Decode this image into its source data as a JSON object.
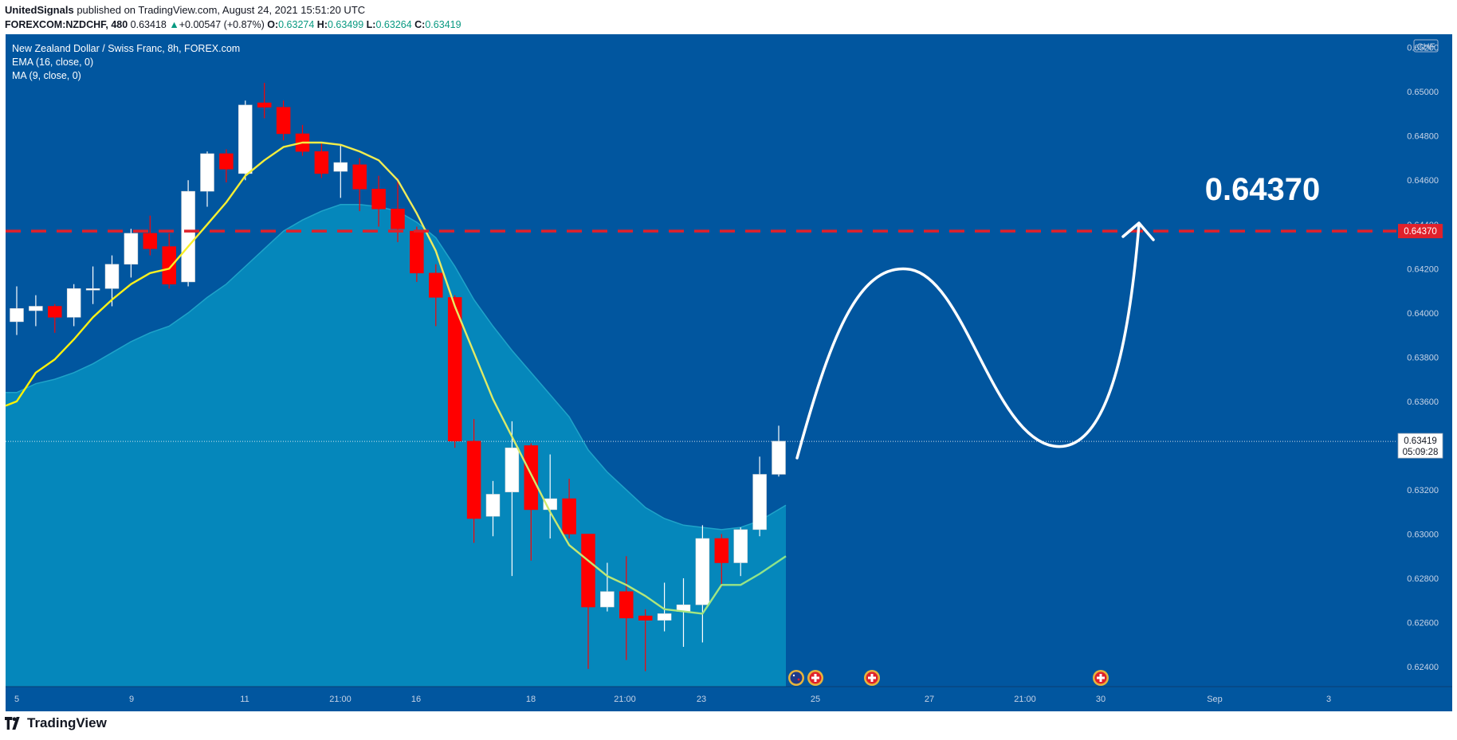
{
  "header": {
    "publisher": "UnitedSignals",
    "published_text": "published on TradingView.com, August 24, 2021 15:51:20 UTC",
    "symbol": "FOREXCOM:NZDCHF, 480",
    "last": "0.63418",
    "change": "+0.00547 (+0.87%)",
    "o_label": "O:",
    "o": "0.63274",
    "h_label": "H:",
    "h": "0.63499",
    "l_label": "L:",
    "l": "0.63264",
    "c_label": "C:",
    "c": "0.63419"
  },
  "legend": {
    "title": "New Zealand Dollar / Swiss Franc, 8h, FOREX.com",
    "ema": "EMA (16, close, 0)",
    "ma": "MA (9, close, 0)"
  },
  "footer": {
    "brand": "TradingView"
  },
  "colors": {
    "background": "#01569F",
    "area": "#0587BB",
    "up_candle": "#FFFFFF",
    "down_candle": "#FF0000",
    "ma_line": "#FFF200",
    "target_line": "#E0212B",
    "projection": "#FFFFFF"
  },
  "chart_data": {
    "type": "candlestick",
    "currency_label": "CHF",
    "y_ticks": [
      "0.62400",
      "0.62600",
      "0.62800",
      "0.63000",
      "0.63200",
      "0.63400",
      "0.63600",
      "0.63800",
      "0.64000",
      "0.64200",
      "0.64400",
      "0.64600",
      "0.64800",
      "0.65000",
      "0.65200"
    ],
    "ylim": [
      0.6231,
      0.6526
    ],
    "x_ticks": [
      "5",
      "9",
      "11",
      "21:00",
      "16",
      "18",
      "21:00",
      "23",
      "25",
      "27",
      "21:00",
      "30",
      "Sep",
      "3"
    ],
    "target": {
      "value": 0.6437,
      "label": "0.64370",
      "big_label": "0.64370"
    },
    "current_price": {
      "value": 0.63419,
      "label": "0.63419",
      "countdown": "05:09:28"
    },
    "candles": [
      {
        "o": 0.6396,
        "h": 0.6412,
        "l": 0.639,
        "c": 0.6402
      },
      {
        "o": 0.6401,
        "h": 0.6408,
        "l": 0.6394,
        "c": 0.6403
      },
      {
        "o": 0.6403,
        "h": 0.6404,
        "l": 0.6391,
        "c": 0.6398
      },
      {
        "o": 0.6398,
        "h": 0.6413,
        "l": 0.6394,
        "c": 0.6411
      },
      {
        "o": 0.6411,
        "h": 0.6421,
        "l": 0.6404,
        "c": 0.6411
      },
      {
        "o": 0.6411,
        "h": 0.6426,
        "l": 0.6403,
        "c": 0.6422
      },
      {
        "o": 0.6422,
        "h": 0.6438,
        "l": 0.6416,
        "c": 0.6436
      },
      {
        "o": 0.6436,
        "h": 0.6444,
        "l": 0.6426,
        "c": 0.6429
      },
      {
        "o": 0.643,
        "h": 0.6436,
        "l": 0.6411,
        "c": 0.6413
      },
      {
        "o": 0.6414,
        "h": 0.646,
        "l": 0.6412,
        "c": 0.6455
      },
      {
        "o": 0.6455,
        "h": 0.6473,
        "l": 0.6448,
        "c": 0.6472
      },
      {
        "o": 0.6472,
        "h": 0.6474,
        "l": 0.6459,
        "c": 0.6465
      },
      {
        "o": 0.6463,
        "h": 0.6496,
        "l": 0.646,
        "c": 0.6494
      },
      {
        "o": 0.6495,
        "h": 0.6504,
        "l": 0.6488,
        "c": 0.6493
      },
      {
        "o": 0.6493,
        "h": 0.6496,
        "l": 0.6478,
        "c": 0.6481
      },
      {
        "o": 0.6481,
        "h": 0.6485,
        "l": 0.6471,
        "c": 0.6473
      },
      {
        "o": 0.6473,
        "h": 0.6477,
        "l": 0.6461,
        "c": 0.6463
      },
      {
        "o": 0.6464,
        "h": 0.6476,
        "l": 0.6452,
        "c": 0.6468
      },
      {
        "o": 0.6467,
        "h": 0.647,
        "l": 0.6446,
        "c": 0.6456
      },
      {
        "o": 0.6456,
        "h": 0.6462,
        "l": 0.6439,
        "c": 0.6447
      },
      {
        "o": 0.6447,
        "h": 0.6461,
        "l": 0.6432,
        "c": 0.6438
      },
      {
        "o": 0.6437,
        "h": 0.6439,
        "l": 0.6414,
        "c": 0.6418
      },
      {
        "o": 0.6418,
        "h": 0.6422,
        "l": 0.6394,
        "c": 0.6407
      },
      {
        "o": 0.6407,
        "h": 0.6408,
        "l": 0.6339,
        "c": 0.6342
      },
      {
        "o": 0.6342,
        "h": 0.6352,
        "l": 0.6296,
        "c": 0.6307
      },
      {
        "o": 0.6308,
        "h": 0.6324,
        "l": 0.6299,
        "c": 0.6318
      },
      {
        "o": 0.6319,
        "h": 0.6351,
        "l": 0.6281,
        "c": 0.6339
      },
      {
        "o": 0.634,
        "h": 0.6341,
        "l": 0.6288,
        "c": 0.6311
      },
      {
        "o": 0.6311,
        "h": 0.6336,
        "l": 0.6298,
        "c": 0.6316
      },
      {
        "o": 0.6316,
        "h": 0.6325,
        "l": 0.6298,
        "c": 0.63
      },
      {
        "o": 0.63,
        "h": 0.63,
        "l": 0.6239,
        "c": 0.6267
      },
      {
        "o": 0.6267,
        "h": 0.6287,
        "l": 0.6265,
        "c": 0.6274
      },
      {
        "o": 0.6274,
        "h": 0.629,
        "l": 0.6243,
        "c": 0.6262
      },
      {
        "o": 0.6263,
        "h": 0.6266,
        "l": 0.6238,
        "c": 0.6261
      },
      {
        "o": 0.6261,
        "h": 0.6278,
        "l": 0.6256,
        "c": 0.6264
      },
      {
        "o": 0.6265,
        "h": 0.628,
        "l": 0.6249,
        "c": 0.6268
      },
      {
        "o": 0.6268,
        "h": 0.6304,
        "l": 0.6251,
        "c": 0.6298
      },
      {
        "o": 0.6298,
        "h": 0.63,
        "l": 0.6276,
        "c": 0.6287
      },
      {
        "o": 0.6287,
        "h": 0.6303,
        "l": 0.6281,
        "c": 0.6302
      },
      {
        "o": 0.6302,
        "h": 0.6335,
        "l": 0.6299,
        "c": 0.6327
      },
      {
        "o": 0.6327,
        "h": 0.6349,
        "l": 0.6326,
        "c": 0.6342
      }
    ],
    "ma9": [
      0.636,
      0.6373,
      0.6379,
      0.6388,
      0.6398,
      0.6406,
      0.6413,
      0.6418,
      0.642,
      0.643,
      0.644,
      0.645,
      0.6462,
      0.6469,
      0.6475,
      0.6477,
      0.6477,
      0.6476,
      0.6473,
      0.6469,
      0.646,
      0.6445,
      0.6428,
      0.6403,
      0.6382,
      0.6361,
      0.6344,
      0.6327,
      0.631,
      0.6295,
      0.6288,
      0.6281,
      0.6277,
      0.6272,
      0.6266,
      0.6265,
      0.6264,
      0.6277,
      0.6277,
      0.6282,
      0.629
    ],
    "ema16": [
      0.6364,
      0.6368,
      0.637,
      0.6373,
      0.6377,
      0.6382,
      0.6387,
      0.6391,
      0.6394,
      0.64,
      0.6407,
      0.6413,
      0.6421,
      0.6429,
      0.6437,
      0.6442,
      0.6446,
      0.6449,
      0.6449,
      0.6448,
      0.6446,
      0.6441,
      0.6434,
      0.6421,
      0.6406,
      0.6394,
      0.6383,
      0.6373,
      0.6363,
      0.6353,
      0.6338,
      0.6328,
      0.632,
      0.6312,
      0.6307,
      0.6304,
      0.6303,
      0.6302,
      0.6303,
      0.6306,
      0.6313
    ]
  },
  "event_icons": [
    {
      "name": "nz-flag-icon",
      "label": "New Zealand event"
    },
    {
      "name": "ch-flag-icon",
      "label": "Swiss event"
    },
    {
      "name": "ch-flag-icon",
      "label": "Swiss event"
    },
    {
      "name": "ch-flag-icon",
      "label": "Swiss event"
    }
  ]
}
